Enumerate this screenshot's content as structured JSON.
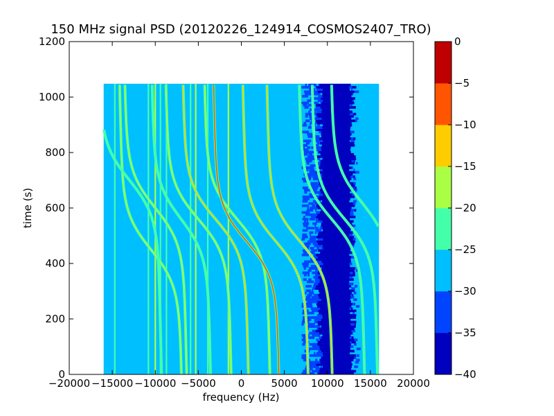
{
  "chart_data": {
    "type": "heatmap",
    "title": "150 MHz signal PSD (20120226_124914_COSMOS2407_TRO)",
    "xlabel": "frequency (Hz)",
    "ylabel": "time (s)",
    "xlim": [
      -20000,
      20000
    ],
    "ylim": [
      0,
      1200
    ],
    "xticks": [
      -20000,
      -15000,
      -10000,
      -5000,
      0,
      5000,
      10000,
      15000,
      20000
    ],
    "xtick_labels": [
      "−20000",
      "−15000",
      "−10000",
      "−5000",
      "0",
      "5000",
      "10000",
      "15000",
      "20000"
    ],
    "yticks": [
      0,
      200,
      400,
      600,
      800,
      1000,
      1200
    ],
    "ytick_labels": [
      "0",
      "200",
      "400",
      "600",
      "800",
      "1000",
      "1200"
    ],
    "data_extent": {
      "x": [
        -16000,
        16000
      ],
      "y": [
        0,
        1048
      ]
    },
    "background_level": -27.5,
    "noise_band": {
      "x": [
        9500,
        12500
      ],
      "level": -37.5
    },
    "noise_fringe": {
      "x": [
        7000,
        13500
      ],
      "level": -32.5
    },
    "vertical_lines": [
      {
        "x": -14700,
        "level": -22.5
      },
      {
        "x": -10800,
        "level": -22.5
      },
      {
        "x": -10000,
        "level": -17.5
      },
      {
        "x": -9400,
        "level": -22.5
      },
      {
        "x": -8700,
        "level": -22.5
      },
      {
        "x": -5900,
        "level": -22.5
      },
      {
        "x": -5300,
        "level": -17.5
      },
      {
        "x": -3900,
        "level": -22.5
      },
      {
        "x": -1500,
        "level": -17.5
      }
    ],
    "traces": [
      {
        "center": -10500,
        "t0": 450,
        "width": 3200,
        "peak": -17.5
      },
      {
        "center": -13000,
        "t0": 700,
        "width": 3200,
        "peak": -22.5
      },
      {
        "center": -10000,
        "t0": 600,
        "width": 3200,
        "peak": -17.5
      },
      {
        "center": -7000,
        "t0": 560,
        "width": 3000,
        "peak": -22.5
      },
      {
        "center": -5000,
        "t0": 560,
        "width": 3400,
        "peak": -17.5
      },
      {
        "center": -3000,
        "t0": 560,
        "width": 3400,
        "peak": -12.5
      },
      {
        "center": -500,
        "t0": 560,
        "width": 3400,
        "peak": -17.5
      },
      {
        "center": 600,
        "t0": 480,
        "width": 3400,
        "peak": -7.5
      },
      {
        "center": 4000,
        "t0": 480,
        "width": 3400,
        "peak": -12.5
      },
      {
        "center": 6800,
        "t0": 480,
        "width": 3400,
        "peak": -12.5
      },
      {
        "center": 10500,
        "t0": 560,
        "width": 3400,
        "peak": -22.5
      },
      {
        "center": 12000,
        "t0": 560,
        "width": 3400,
        "peak": -22.5
      },
      {
        "center": 14000,
        "t0": 620,
        "width": 3200,
        "peak": -22.5
      }
    ],
    "colorbar": {
      "levels": [
        -40,
        -35,
        -30,
        -25,
        -20,
        -15,
        -10,
        -5,
        0
      ],
      "labels": [
        "−40",
        "−35",
        "−30",
        "−25",
        "−20",
        "−15",
        "−10",
        "−5",
        "0"
      ],
      "colors": [
        "#0000bf",
        "#0044ff",
        "#00bfff",
        "#44ffaa",
        "#aaff44",
        "#ffcc00",
        "#ff5500",
        "#bf0000"
      ]
    }
  }
}
